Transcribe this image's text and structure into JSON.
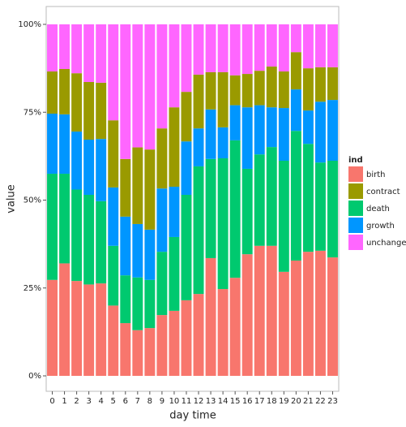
{
  "chart_data": {
    "type": "stacked-bar",
    "x_label": "day time",
    "y_label": "value",
    "legend_title": "ind",
    "categories": [
      "0",
      "1",
      "2",
      "3",
      "4",
      "5",
      "6",
      "7",
      "8",
      "9",
      "10",
      "11",
      "12",
      "13",
      "14",
      "15",
      "16",
      "17",
      "18",
      "19",
      "20",
      "21",
      "22",
      "23"
    ],
    "series": [
      {
        "name": "birth",
        "color": "#f8766d",
        "values": [
          27.3,
          32,
          27,
          26,
          26.3,
          20,
          15,
          13,
          13.6,
          17.3,
          18.5,
          21.5,
          23.3,
          33.5,
          24.7,
          27.9,
          34.6,
          37,
          37,
          29.6,
          32.8,
          35.3,
          35.6,
          33.7
        ]
      },
      {
        "name": "death",
        "color": "#00c96f",
        "values": [
          30.2,
          25.5,
          26,
          25.5,
          23.4,
          17,
          13.6,
          15,
          13.7,
          18,
          21,
          30,
          36.3,
          28.2,
          37.2,
          39.1,
          24.3,
          26,
          28.1,
          31.6,
          36.9,
          30.7,
          25.1,
          27.5
        ]
      },
      {
        "name": "growth",
        "color": "#0096ff",
        "values": [
          17.1,
          16.9,
          16.5,
          15.7,
          17.7,
          16.6,
          16.7,
          15.2,
          14.3,
          18,
          14.3,
          15.2,
          10.8,
          14.1,
          8.8,
          10,
          17.5,
          14,
          11.3,
          15,
          11.8,
          9.5,
          17.3,
          17.3
        ]
      },
      {
        "name": "contract",
        "color": "#9a9a00",
        "values": [
          12,
          12.9,
          16.6,
          16.4,
          16,
          19.1,
          16.4,
          21.8,
          22.8,
          17.1,
          22.6,
          14.1,
          15.3,
          10.6,
          15.7,
          8.5,
          9.5,
          9.8,
          11.6,
          10.4,
          10.6,
          12,
          9.8,
          9.3
        ]
      },
      {
        "name": "unchanged",
        "color": "#ff66ff",
        "values": [
          13.4,
          12.7,
          13.9,
          16.4,
          16.6,
          27.3,
          38.3,
          35,
          35.6,
          29.6,
          23.6,
          19.2,
          14.3,
          13.6,
          13.6,
          14.5,
          14.1,
          13.2,
          12,
          13.4,
          7.9,
          12.5,
          12.2,
          12.2
        ]
      }
    ],
    "ylim": [
      0,
      104.2
    ],
    "yticks": [
      {
        "value": 0,
        "label": "0%"
      },
      {
        "value": 25,
        "label": "25%"
      },
      {
        "value": 50,
        "label": "50%"
      },
      {
        "value": 75,
        "label": "75%"
      },
      {
        "value": 100,
        "label": "100%"
      }
    ],
    "grid": false
  }
}
